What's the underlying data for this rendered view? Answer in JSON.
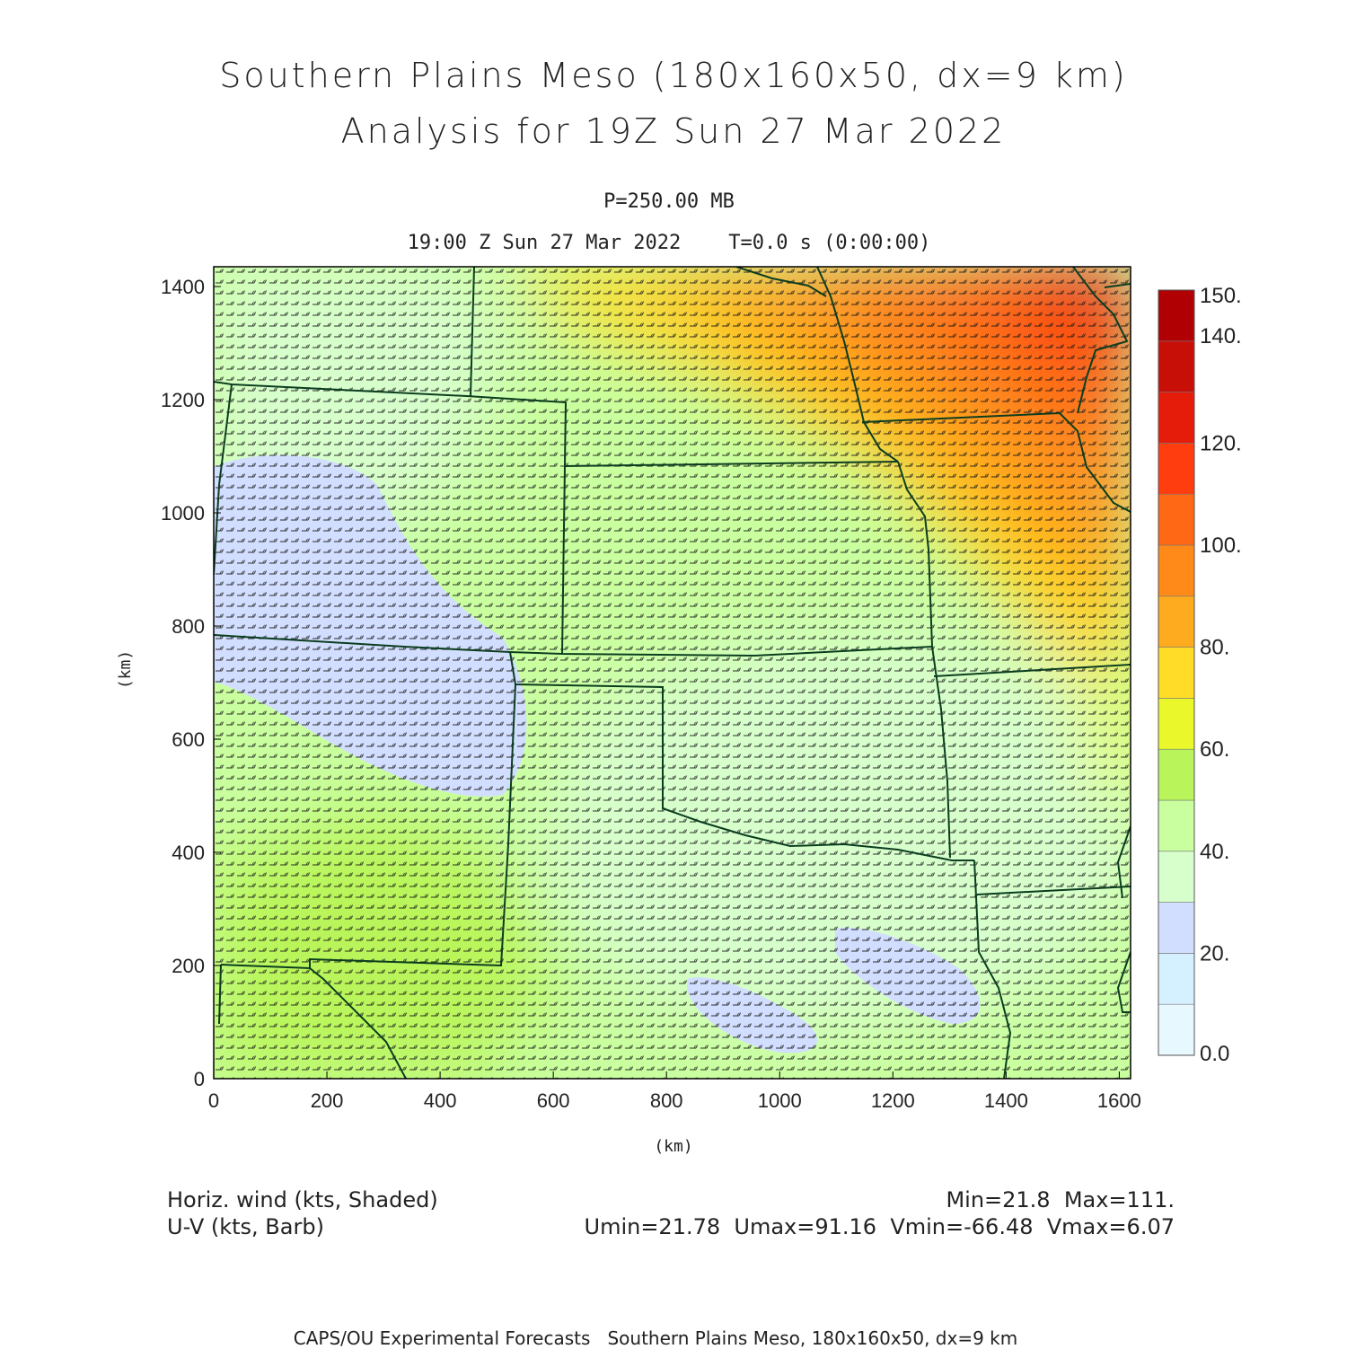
{
  "title_line1": "Southern Plains Meso (180x160x50, dx=9 km)",
  "title_line2": "Analysis for 19Z Sun 27 Mar 2022",
  "level_label": "P=250.00 MB",
  "time_label": "19:00 Z Sun 27 Mar 2022    T=0.0 s (0:00:00)",
  "field_label_1": "Horiz. wind (kts, Shaded)",
  "field_label_2": "U-V (kts, Barb)",
  "stats_line_1": "Min=21.8  Max=111.",
  "stats_line_2": "Umin=21.78  Umax=91.16  Vmin=-66.48  Vmax=6.07",
  "footer": "CAPS/OU Experimental Forecasts   Southern Plains Meso, 180x160x50, dx=9 km",
  "chart_data": {
    "type": "heatmap",
    "xlabel": "(km)",
    "ylabel": "(km)",
    "xlim": [
      0,
      1620
    ],
    "ylim": [
      0,
      1435
    ],
    "x_ticks": [
      "0",
      "200",
      "400",
      "600",
      "800",
      "1000",
      "1200",
      "1400",
      "1600"
    ],
    "y_ticks": [
      "0",
      "200",
      "400",
      "600",
      "800",
      "1000",
      "1200",
      "1400"
    ],
    "colorbar_labels": [
      "0.0",
      "20.",
      "40.",
      "60.",
      "80.",
      "100.",
      "120.",
      "140.",
      "150."
    ],
    "colorbar_colors": [
      "#e8f8ff",
      "#d5f1ff",
      "#d2deff",
      "#d7ffcc",
      "#c9ff9f",
      "#b9f55a",
      "#eaf72b",
      "#ffdc27",
      "#ffab1f",
      "#ff8a1a",
      "#ff6814",
      "#ff3d0e",
      "#e61c0a",
      "#c80f07",
      "#b00004"
    ],
    "colorbar_bounds": [
      0,
      10,
      20,
      30,
      40,
      50,
      60,
      70,
      80,
      90,
      100,
      110,
      120,
      130,
      140,
      150
    ],
    "min": 21.8,
    "max": 111,
    "border_color": "#0b3d1f",
    "barb_color": "#1a1a1a"
  }
}
